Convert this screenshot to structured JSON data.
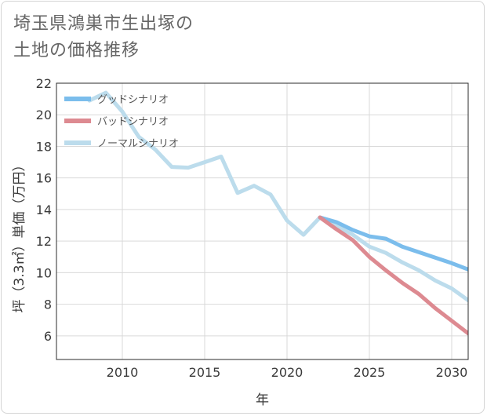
{
  "title": {
    "line1": "埼玉県鴻巣市生出塚の",
    "line2": "土地の価格推移"
  },
  "chart_data": {
    "type": "line",
    "xlabel": "年",
    "ylabel": "坪（3.3㎡）単価（万円）",
    "xlim": [
      2006,
      2031
    ],
    "ylim": [
      4.5,
      22
    ],
    "xticks": [
      2010,
      2015,
      2020,
      2025,
      2030
    ],
    "yticks": [
      6,
      8,
      10,
      12,
      14,
      16,
      18,
      20,
      22
    ],
    "grid": true,
    "legend_position": "top-left",
    "series": [
      {
        "name": "グッドシナリオ",
        "color": "#7bbdec",
        "x": [
          2022,
          2023,
          2024,
          2025,
          2026,
          2027,
          2028,
          2029,
          2030,
          2031
        ],
        "y": [
          13.5,
          13.2,
          12.7,
          12.3,
          12.15,
          11.65,
          11.3,
          10.95,
          10.6,
          10.2
        ]
      },
      {
        "name": "バッドシナリオ",
        "color": "#dd8a91",
        "x": [
          2022,
          2023,
          2024,
          2025,
          2026,
          2027,
          2028,
          2029,
          2030,
          2031
        ],
        "y": [
          13.5,
          12.75,
          12.05,
          11.0,
          10.15,
          9.35,
          8.65,
          7.75,
          6.95,
          6.15
        ]
      },
      {
        "name": "ノーマルシナリオ",
        "color": "#bcdcec",
        "x": [
          2008,
          2009,
          2010,
          2011,
          2012,
          2013,
          2014,
          2015,
          2016,
          2017,
          2018,
          2019,
          2020,
          2021,
          2022,
          2023,
          2024,
          2025,
          2026,
          2027,
          2028,
          2029,
          2030,
          2031
        ],
        "y": [
          20.9,
          21.4,
          20.2,
          18.6,
          17.8,
          16.7,
          16.65,
          17.0,
          17.35,
          15.05,
          15.5,
          14.95,
          13.3,
          12.4,
          13.5,
          12.95,
          12.4,
          11.65,
          11.25,
          10.65,
          10.15,
          9.5,
          9.0,
          8.25
        ]
      }
    ]
  }
}
